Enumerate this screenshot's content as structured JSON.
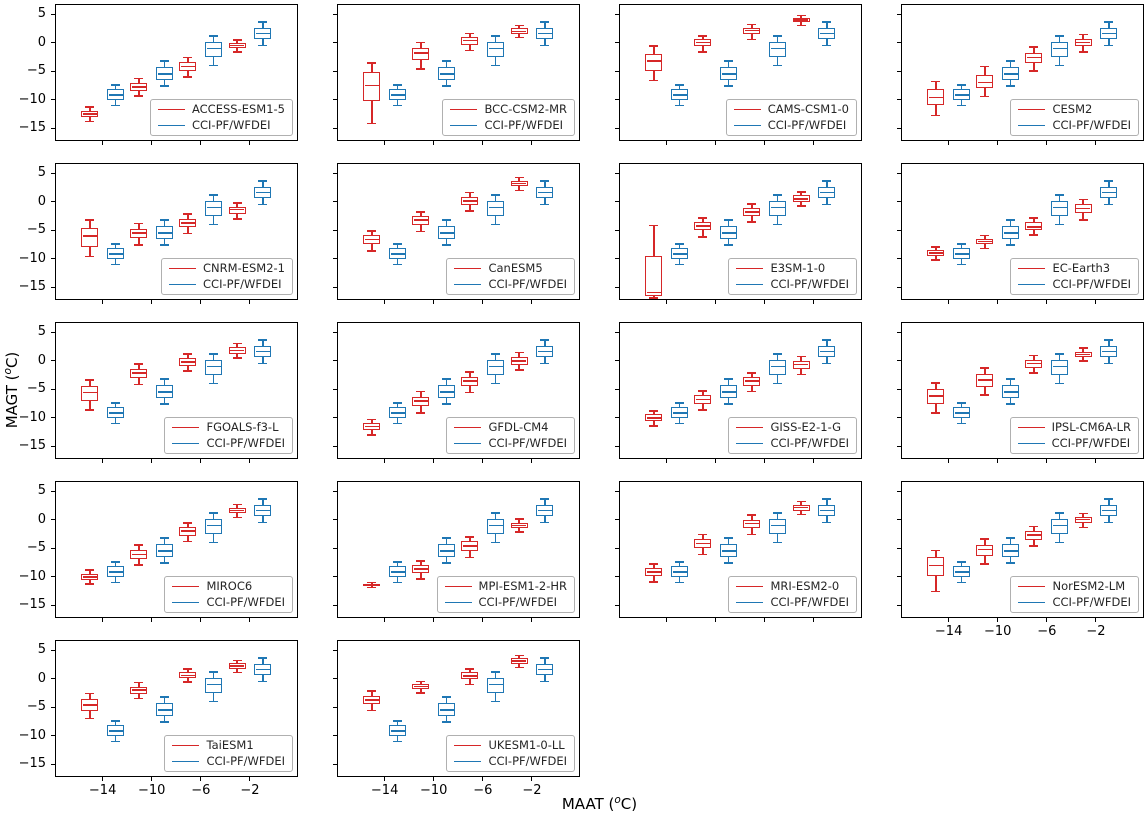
{
  "figure": {
    "ylabel_prefix": "MAGT (",
    "ylabel_sup": "o",
    "ylabel_suffix": "C)",
    "xlabel_prefix": "MAAT (",
    "xlabel_sup": "o",
    "xlabel_suffix": "C)"
  },
  "chart_data": {
    "type": "boxplot",
    "layout": "grid-5x4",
    "title": "",
    "xlabel": "MAAT (oC)",
    "ylabel": "MAGT (oC)",
    "x_categories": [
      -14,
      -10,
      -6,
      -2
    ],
    "x_ticks": [
      -14,
      -10,
      -6,
      -2
    ],
    "y_ticks": [
      5,
      0,
      -5,
      -10,
      -15
    ],
    "xlim": [
      -17.8,
      2.0
    ],
    "ylim": [
      -17.4,
      6.6
    ],
    "grid": false,
    "legend_position": "lower right",
    "colors": {
      "model": "#d62728",
      "reference": "#1f77b4"
    },
    "reference_series_name": "CCI-PF/WFDEI",
    "reference_boxes": [
      {
        "x": -14,
        "whislo": -11.0,
        "q1": -10.0,
        "med": -9.2,
        "q3": -8.2,
        "whishi": -7.4
      },
      {
        "x": -10,
        "whislo": -7.6,
        "q1": -6.5,
        "med": -5.5,
        "q3": -4.2,
        "whishi": -3.2
      },
      {
        "x": -6,
        "whislo": -4.0,
        "q1": -2.5,
        "med": -1.0,
        "q3": 0.2,
        "whishi": 1.2
      },
      {
        "x": -2,
        "whislo": -0.5,
        "q1": 0.6,
        "med": 1.6,
        "q3": 2.6,
        "whishi": 3.6
      }
    ],
    "panels": [
      {
        "model": "ACCESS-ESM1-5",
        "row": 1,
        "col": 1,
        "show_y_ticklabels": true,
        "show_x_ticklabels": false,
        "model_boxes": [
          {
            "x": -14,
            "whislo": -13.8,
            "q1": -13.1,
            "med": -12.5,
            "q3": -11.9,
            "whishi": -11.3
          },
          {
            "x": -10,
            "whislo": -9.3,
            "q1": -8.5,
            "med": -7.8,
            "q3": -7.1,
            "whishi": -6.3
          },
          {
            "x": -6,
            "whislo": -6.0,
            "q1": -5.0,
            "med": -4.2,
            "q3": -3.4,
            "whishi": -2.6
          },
          {
            "x": -2,
            "whislo": -1.6,
            "q1": -1.0,
            "med": -0.5,
            "q3": 0.0,
            "whishi": 0.5
          }
        ]
      },
      {
        "model": "BCC-CSM2-MR",
        "row": 1,
        "col": 2,
        "show_y_ticklabels": false,
        "show_x_ticklabels": false,
        "model_boxes": [
          {
            "x": -14,
            "whislo": -14.2,
            "q1": -10.2,
            "med": -7.5,
            "q3": -5.2,
            "whishi": -3.6
          },
          {
            "x": -10,
            "whislo": -4.6,
            "q1": -3.0,
            "med": -1.8,
            "q3": -1.0,
            "whishi": 0.0
          },
          {
            "x": -6,
            "whislo": -1.4,
            "q1": -0.4,
            "med": 0.4,
            "q3": 1.0,
            "whishi": 1.6
          },
          {
            "x": -2,
            "whislo": 0.9,
            "q1": 1.5,
            "med": 2.0,
            "q3": 2.5,
            "whishi": 3.0
          }
        ]
      },
      {
        "model": "CAMS-CSM1-0",
        "row": 1,
        "col": 3,
        "show_y_ticklabels": false,
        "show_x_ticklabels": false,
        "model_boxes": [
          {
            "x": -14,
            "whislo": -6.6,
            "q1": -5.0,
            "med": -3.2,
            "q3": -1.9,
            "whishi": -0.6
          },
          {
            "x": -10,
            "whislo": -1.6,
            "q1": -0.6,
            "med": 0.0,
            "q3": 0.6,
            "whishi": 1.2
          },
          {
            "x": -6,
            "whislo": 0.6,
            "q1": 1.5,
            "med": 2.1,
            "q3": 2.6,
            "whishi": 3.2
          },
          {
            "x": -2,
            "whislo": 3.0,
            "q1": 3.6,
            "med": 4.0,
            "q3": 4.4,
            "whishi": 4.8
          }
        ]
      },
      {
        "model": "CESM2",
        "row": 1,
        "col": 4,
        "show_y_ticklabels": false,
        "show_x_ticklabels": false,
        "model_boxes": [
          {
            "x": -14,
            "whislo": -12.8,
            "q1": -11.0,
            "med": -9.6,
            "q3": -8.2,
            "whishi": -6.8
          },
          {
            "x": -10,
            "whislo": -9.4,
            "q1": -8.0,
            "med": -7.0,
            "q3": -5.6,
            "whishi": -4.2
          },
          {
            "x": -6,
            "whislo": -5.0,
            "q1": -3.6,
            "med": -2.6,
            "q3": -1.8,
            "whishi": -0.8
          },
          {
            "x": -2,
            "whislo": -1.6,
            "q1": -0.6,
            "med": 0.0,
            "q3": 0.6,
            "whishi": 1.4
          }
        ]
      },
      {
        "model": "CNRM-ESM2-1",
        "row": 2,
        "col": 1,
        "show_y_ticklabels": true,
        "show_x_ticklabels": false,
        "model_boxes": [
          {
            "x": -14,
            "whislo": -9.6,
            "q1": -7.9,
            "med": -6.0,
            "q3": -4.6,
            "whishi": -3.2
          },
          {
            "x": -10,
            "whislo": -7.6,
            "q1": -6.4,
            "med": -5.5,
            "q3": -4.8,
            "whishi": -3.8
          },
          {
            "x": -6,
            "whislo": -5.6,
            "q1": -4.5,
            "med": -3.7,
            "q3": -3.0,
            "whishi": -2.2
          },
          {
            "x": -2,
            "whislo": -3.0,
            "q1": -2.1,
            "med": -1.4,
            "q3": -0.9,
            "whishi": -0.2
          }
        ]
      },
      {
        "model": "CanESM5",
        "row": 2,
        "col": 2,
        "show_y_ticklabels": false,
        "show_x_ticklabels": false,
        "model_boxes": [
          {
            "x": -14,
            "whislo": -8.6,
            "q1": -7.5,
            "med": -6.6,
            "q3": -5.9,
            "whishi": -5.1
          },
          {
            "x": -10,
            "whislo": -5.2,
            "q1": -4.0,
            "med": -3.2,
            "q3": -2.5,
            "whishi": -1.8
          },
          {
            "x": -6,
            "whislo": -1.6,
            "q1": -0.6,
            "med": 0.1,
            "q3": 0.8,
            "whishi": 1.6
          },
          {
            "x": -2,
            "whislo": 2.0,
            "q1": 2.7,
            "med": 3.2,
            "q3": 3.7,
            "whishi": 4.2
          }
        ]
      },
      {
        "model": "E3SM-1-0",
        "row": 2,
        "col": 3,
        "show_y_ticklabels": false,
        "show_x_ticklabels": false,
        "model_boxes": [
          {
            "x": -14,
            "whislo": -16.9,
            "q1": -16.6,
            "med": -15.9,
            "q3": -9.6,
            "whishi": -4.2
          },
          {
            "x": -10,
            "whislo": -6.2,
            "q1": -5.0,
            "med": -4.3,
            "q3": -3.6,
            "whishi": -2.9
          },
          {
            "x": -6,
            "whislo": -3.6,
            "q1": -2.5,
            "med": -1.8,
            "q3": -1.1,
            "whishi": -0.4
          },
          {
            "x": -2,
            "whislo": -0.8,
            "q1": 0.0,
            "med": 0.5,
            "q3": 1.1,
            "whishi": 1.7
          }
        ]
      },
      {
        "model": "EC-Earth3",
        "row": 2,
        "col": 4,
        "show_y_ticklabels": false,
        "show_x_ticklabels": false,
        "model_boxes": [
          {
            "x": -14,
            "whislo": -10.2,
            "q1": -9.5,
            "med": -9.0,
            "q3": -8.5,
            "whishi": -7.9
          },
          {
            "x": -10,
            "whislo": -8.2,
            "q1": -7.5,
            "med": -7.0,
            "q3": -6.5,
            "whishi": -5.9
          },
          {
            "x": -6,
            "whislo": -5.8,
            "q1": -5.0,
            "med": -4.4,
            "q3": -3.6,
            "whishi": -2.9
          },
          {
            "x": -2,
            "whislo": -3.2,
            "q1": -2.0,
            "med": -1.2,
            "q3": -0.4,
            "whishi": 0.4
          }
        ]
      },
      {
        "model": "FGOALS-f3-L",
        "row": 3,
        "col": 1,
        "show_y_ticklabels": true,
        "show_x_ticklabels": false,
        "model_boxes": [
          {
            "x": -14,
            "whislo": -8.6,
            "q1": -7.0,
            "med": -5.6,
            "q3": -4.4,
            "whishi": -3.4
          },
          {
            "x": -10,
            "whislo": -4.2,
            "q1": -3.0,
            "med": -2.2,
            "q3": -1.4,
            "whishi": -0.6
          },
          {
            "x": -6,
            "whislo": -1.8,
            "q1": -0.9,
            "med": -0.2,
            "q3": 0.5,
            "whishi": 1.2
          },
          {
            "x": -2,
            "whislo": 0.5,
            "q1": 1.2,
            "med": 1.8,
            "q3": 2.4,
            "whishi": 3.0
          }
        ]
      },
      {
        "model": "GFDL-CM4",
        "row": 3,
        "col": 2,
        "show_y_ticklabels": false,
        "show_x_ticklabels": false,
        "model_boxes": [
          {
            "x": -14,
            "whislo": -13.0,
            "q1": -12.1,
            "med": -11.5,
            "q3": -11.0,
            "whishi": -10.3
          },
          {
            "x": -10,
            "whislo": -9.2,
            "q1": -8.0,
            "med": -7.1,
            "q3": -6.3,
            "whishi": -5.4
          },
          {
            "x": -6,
            "whislo": -5.6,
            "q1": -4.5,
            "med": -3.6,
            "q3": -2.8,
            "whishi": -2.0
          },
          {
            "x": -2,
            "whislo": -1.6,
            "q1": -0.7,
            "med": -0.1,
            "q3": 0.6,
            "whishi": 1.4
          }
        ]
      },
      {
        "model": "GISS-E2-1-G",
        "row": 3,
        "col": 3,
        "show_y_ticklabels": false,
        "show_x_ticklabels": false,
        "model_boxes": [
          {
            "x": -14,
            "whislo": -11.4,
            "q1": -10.5,
            "med": -10.0,
            "q3": -9.4,
            "whishi": -8.8
          },
          {
            "x": -10,
            "whislo": -8.6,
            "q1": -7.6,
            "med": -6.8,
            "q3": -6.0,
            "whishi": -5.3
          },
          {
            "x": -6,
            "whislo": -5.4,
            "q1": -4.4,
            "med": -3.6,
            "q3": -2.9,
            "whishi": -2.2
          },
          {
            "x": -2,
            "whislo": -2.4,
            "q1": -1.4,
            "med": -0.7,
            "q3": -0.1,
            "whishi": 0.7
          }
        ]
      },
      {
        "model": "IPSL-CM6A-LR",
        "row": 3,
        "col": 4,
        "show_y_ticklabels": false,
        "show_x_ticklabels": false,
        "model_boxes": [
          {
            "x": -14,
            "whislo": -9.2,
            "q1": -7.6,
            "med": -6.2,
            "q3": -5.0,
            "whishi": -3.9
          },
          {
            "x": -10,
            "whislo": -6.0,
            "q1": -4.6,
            "med": -3.4,
            "q3": -2.4,
            "whishi": -1.3
          },
          {
            "x": -6,
            "whislo": -2.2,
            "q1": -1.2,
            "med": -0.5,
            "q3": 0.2,
            "whishi": 0.9
          },
          {
            "x": -2,
            "whislo": -0.1,
            "q1": 0.6,
            "med": 1.1,
            "q3": 1.6,
            "whishi": 2.2
          }
        ]
      },
      {
        "model": "MIROC6",
        "row": 4,
        "col": 1,
        "show_y_ticklabels": true,
        "show_x_ticklabels": false,
        "model_boxes": [
          {
            "x": -14,
            "whislo": -11.3,
            "q1": -10.5,
            "med": -10.0,
            "q3": -9.5,
            "whishi": -8.8
          },
          {
            "x": -10,
            "whislo": -7.9,
            "q1": -6.9,
            "med": -6.1,
            "q3": -5.3,
            "whishi": -4.4
          },
          {
            "x": -6,
            "whislo": -3.8,
            "q1": -2.8,
            "med": -2.0,
            "q3": -1.3,
            "whishi": -0.6
          },
          {
            "x": -2,
            "whislo": 0.4,
            "q1": 1.1,
            "med": 1.6,
            "q3": 2.1,
            "whishi": 2.7
          }
        ]
      },
      {
        "model": "MPI-ESM1-2-HR",
        "row": 4,
        "col": 2,
        "show_y_ticklabels": false,
        "show_x_ticklabels": false,
        "model_boxes": [
          {
            "x": -14,
            "whislo": -11.9,
            "q1": -11.6,
            "med": -11.4,
            "q3": -11.2,
            "whishi": -11.0
          },
          {
            "x": -10,
            "whislo": -10.4,
            "q1": -9.4,
            "med": -8.6,
            "q3": -7.9,
            "whishi": -7.2
          },
          {
            "x": -6,
            "whislo": -6.6,
            "q1": -5.5,
            "med": -4.6,
            "q3": -3.8,
            "whishi": -3.0
          },
          {
            "x": -2,
            "whislo": -2.2,
            "q1": -1.5,
            "med": -1.0,
            "q3": -0.5,
            "whishi": 0.1
          }
        ]
      },
      {
        "model": "MRI-ESM2-0",
        "row": 4,
        "col": 3,
        "show_y_ticklabels": false,
        "show_x_ticklabels": false,
        "model_boxes": [
          {
            "x": -14,
            "whislo": -10.9,
            "q1": -9.9,
            "med": -9.2,
            "q3": -8.5,
            "whishi": -7.8
          },
          {
            "x": -10,
            "whislo": -6.1,
            "q1": -5.0,
            "med": -4.2,
            "q3": -3.4,
            "whishi": -2.6
          },
          {
            "x": -6,
            "whislo": -2.6,
            "q1": -1.5,
            "med": -0.7,
            "q3": 0.0,
            "whishi": 0.8
          },
          {
            "x": -2,
            "whislo": 0.9,
            "q1": 1.6,
            "med": 2.1,
            "q3": 2.6,
            "whishi": 3.2
          }
        ]
      },
      {
        "model": "NorESM2-LM",
        "row": 4,
        "col": 4,
        "show_y_ticklabels": false,
        "show_x_ticklabels": true,
        "model_boxes": [
          {
            "x": -14,
            "whislo": -12.6,
            "q1": -9.8,
            "med": -8.0,
            "q3": -6.6,
            "whishi": -5.4
          },
          {
            "x": -10,
            "whislo": -7.8,
            "q1": -6.4,
            "med": -5.2,
            "q3": -4.4,
            "whishi": -3.4
          },
          {
            "x": -6,
            "whislo": -4.6,
            "q1": -3.5,
            "med": -2.7,
            "q3": -2.0,
            "whishi": -1.2
          },
          {
            "x": -2,
            "whislo": -1.4,
            "q1": -0.6,
            "med": 0.0,
            "q3": 0.5,
            "whishi": 1.1
          }
        ]
      },
      {
        "model": "TaiESM1",
        "row": 5,
        "col": 1,
        "show_y_ticklabels": true,
        "show_x_ticklabels": true,
        "model_boxes": [
          {
            "x": -14,
            "whislo": -7.0,
            "q1": -5.6,
            "med": -4.6,
            "q3": -3.6,
            "whishi": -2.6
          },
          {
            "x": -10,
            "whislo": -3.5,
            "q1": -2.6,
            "med": -2.0,
            "q3": -1.4,
            "whishi": -0.7
          },
          {
            "x": -6,
            "whislo": -0.6,
            "q1": 0.1,
            "med": 0.6,
            "q3": 1.1,
            "whishi": 1.7
          },
          {
            "x": -2,
            "whislo": 1.1,
            "q1": 1.7,
            "med": 2.2,
            "q3": 2.7,
            "whishi": 3.2
          }
        ]
      },
      {
        "model": "UKESM1-0-LL",
        "row": 5,
        "col": 2,
        "show_y_ticklabels": false,
        "show_x_ticklabels": true,
        "model_boxes": [
          {
            "x": -14,
            "whislo": -5.6,
            "q1": -4.5,
            "med": -3.7,
            "q3": -3.0,
            "whishi": -2.2
          },
          {
            "x": -10,
            "whislo": -2.5,
            "q1": -1.8,
            "med": -1.4,
            "q3": -1.0,
            "whishi": -0.5
          },
          {
            "x": -6,
            "whislo": -1.0,
            "q1": -0.1,
            "med": 0.5,
            "q3": 1.1,
            "whishi": 1.7
          },
          {
            "x": -2,
            "whislo": 2.0,
            "q1": 2.6,
            "med": 3.1,
            "q3": 3.6,
            "whishi": 4.1
          }
        ]
      }
    ]
  }
}
